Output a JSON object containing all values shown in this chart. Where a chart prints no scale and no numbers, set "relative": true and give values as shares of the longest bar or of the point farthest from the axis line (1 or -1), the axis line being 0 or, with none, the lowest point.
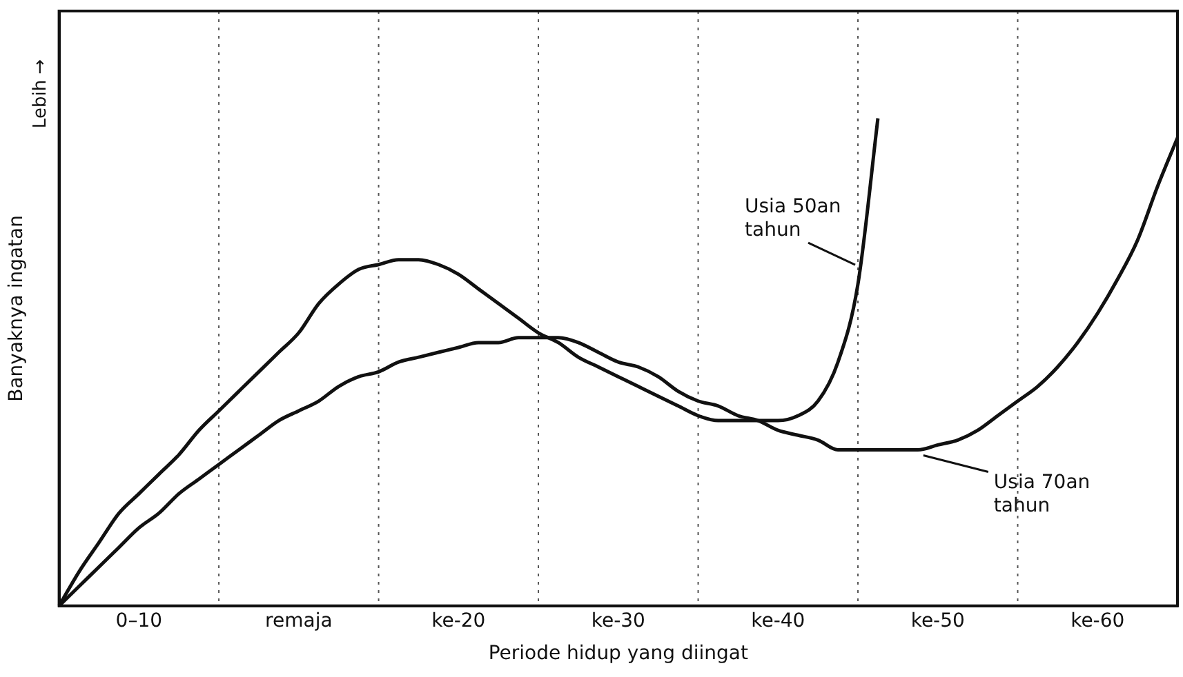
{
  "chart_data": {
    "type": "line",
    "relative": true,
    "xlabel": "Periode hidup yang diingat",
    "ylabel": "Banyaknya ingatan",
    "annotations": [
      "Lebih →"
    ],
    "categories": [
      null,
      null,
      null,
      null,
      "0–10",
      null,
      null,
      null,
      null,
      null,
      null,
      null,
      "remaja",
      null,
      null,
      null,
      null,
      null,
      null,
      null,
      "ke-20",
      null,
      null,
      null,
      null,
      null,
      null,
      null,
      "ke-30",
      null,
      null,
      null,
      null,
      null,
      null,
      null,
      "ke-40",
      null,
      null,
      null,
      null,
      null,
      null,
      null,
      "ke-50",
      null,
      null,
      null,
      null,
      null,
      null,
      null,
      "ke-60",
      null,
      null,
      null,
      null
    ],
    "grid": "x",
    "legend": false,
    "marker": "none",
    "line_style": "solid",
    "series": [
      {
        "name": "Usia 50an tahun",
        "color": "#111111",
        "values": [
          0,
          0.07,
          0.13,
          0.19,
          0.23,
          0.27,
          0.31,
          0.36,
          0.4,
          0.44,
          0.48,
          0.52,
          0.56,
          0.62,
          0.66,
          0.69,
          0.7,
          0.71,
          0.71,
          0.7,
          0.68,
          0.65,
          0.62,
          0.59,
          0.56,
          0.54,
          0.51,
          0.49,
          0.47,
          0.45,
          0.43,
          0.41,
          0.39,
          0.38,
          0.38,
          0.38,
          0.38,
          0.39,
          0.42,
          0.5,
          0.66,
          1,
          null,
          null,
          null,
          null,
          null,
          null,
          null,
          null,
          null,
          null,
          null,
          null,
          null,
          null,
          null
        ]
      },
      {
        "name": "Usia 70an tahun",
        "color": "#111111",
        "values": [
          0,
          0.04,
          0.08,
          0.12,
          0.16,
          0.19,
          0.23,
          0.26,
          0.29,
          0.32,
          0.35,
          0.38,
          0.4,
          0.42,
          0.45,
          0.47,
          0.48,
          0.5,
          0.51,
          0.52,
          0.53,
          0.54,
          0.54,
          0.55,
          0.55,
          0.55,
          0.54,
          0.52,
          0.5,
          0.49,
          0.47,
          0.44,
          0.42,
          0.41,
          0.39,
          0.38,
          0.36,
          0.35,
          0.34,
          0.32,
          0.32,
          0.32,
          0.32,
          0.32,
          0.33,
          0.34,
          0.36,
          0.39,
          0.42,
          0.45,
          0.49,
          0.54,
          0.6,
          0.67,
          0.75,
          0.86,
          0.96
        ]
      }
    ]
  }
}
